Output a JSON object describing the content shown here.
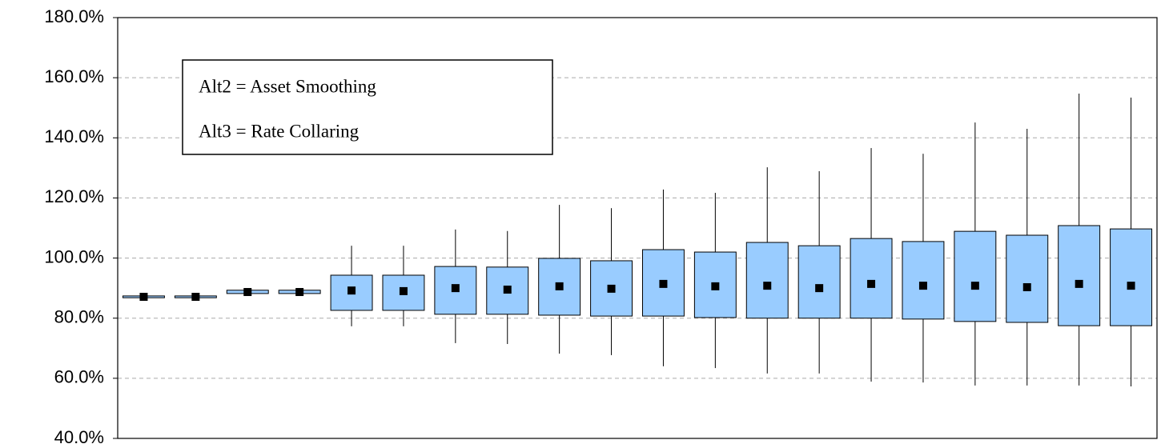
{
  "chart_data": {
    "type": "box",
    "annotations": [
      "Alt2 = Asset Smoothing",
      "Alt3 = Rate Collaring"
    ],
    "categories": [
      null,
      null,
      null,
      null,
      null,
      null,
      null,
      null,
      null,
      null,
      null,
      null,
      null,
      null,
      null,
      null,
      null,
      null,
      null,
      null
    ],
    "color": "#99ccff",
    "boxes": [
      {
        "whislo": 86.8,
        "q1": 86.8,
        "mean": 87.1,
        "q3": 87.4,
        "whishi": 87.4
      },
      {
        "whislo": 86.8,
        "q1": 86.8,
        "mean": 87.1,
        "q3": 87.4,
        "whishi": 87.4
      },
      {
        "whislo": 88.2,
        "q1": 88.2,
        "mean": 88.7,
        "q3": 89.3,
        "whishi": 89.3
      },
      {
        "whislo": 88.2,
        "q1": 88.2,
        "mean": 88.7,
        "q3": 89.3,
        "whishi": 89.3
      },
      {
        "whislo": 77.3,
        "q1": 82.6,
        "mean": 89.2,
        "q3": 94.3,
        "whishi": 104.1
      },
      {
        "whislo": 77.3,
        "q1": 82.6,
        "mean": 89.0,
        "q3": 94.3,
        "whishi": 104.1
      },
      {
        "whislo": 71.7,
        "q1": 81.3,
        "mean": 90.0,
        "q3": 97.2,
        "whishi": 109.5
      },
      {
        "whislo": 71.4,
        "q1": 81.3,
        "mean": 89.5,
        "q3": 97.0,
        "whishi": 109.0
      },
      {
        "whislo": 68.2,
        "q1": 81.0,
        "mean": 90.6,
        "q3": 99.9,
        "whishi": 117.7
      },
      {
        "whislo": 67.7,
        "q1": 80.7,
        "mean": 89.8,
        "q3": 99.1,
        "whishi": 116.6
      },
      {
        "whislo": 64.0,
        "q1": 80.7,
        "mean": 91.4,
        "q3": 102.8,
        "whishi": 122.8
      },
      {
        "whislo": 63.4,
        "q1": 80.2,
        "mean": 90.6,
        "q3": 102.0,
        "whishi": 121.7
      },
      {
        "whislo": 61.6,
        "q1": 80.0,
        "mean": 90.8,
        "q3": 105.2,
        "whishi": 130.2
      },
      {
        "whislo": 61.6,
        "q1": 80.0,
        "mean": 90.0,
        "q3": 104.1,
        "whishi": 128.9
      },
      {
        "whislo": 58.9,
        "q1": 80.0,
        "mean": 91.4,
        "q3": 106.5,
        "whishi": 136.6
      },
      {
        "whislo": 58.6,
        "q1": 79.7,
        "mean": 90.8,
        "q3": 105.5,
        "whishi": 134.7
      },
      {
        "whislo": 57.6,
        "q1": 78.9,
        "mean": 90.8,
        "q3": 108.9,
        "whishi": 145.1
      },
      {
        "whislo": 57.6,
        "q1": 78.6,
        "mean": 90.3,
        "q3": 107.6,
        "whishi": 143.0
      },
      {
        "whislo": 57.6,
        "q1": 77.5,
        "mean": 91.4,
        "q3": 110.8,
        "whishi": 154.7
      },
      {
        "whislo": 57.3,
        "q1": 77.5,
        "mean": 90.8,
        "q3": 109.7,
        "whishi": 153.4
      }
    ],
    "ylim": [
      40,
      180
    ],
    "yticks": [
      {
        "value": 40,
        "label": "40.0%"
      },
      {
        "value": 60,
        "label": "60.0%"
      },
      {
        "value": 80,
        "label": "80.0%"
      },
      {
        "value": 100,
        "label": "100.0%"
      },
      {
        "value": 120,
        "label": "120.0%"
      },
      {
        "value": 140,
        "label": "140.0%"
      },
      {
        "value": 160,
        "label": "160.0%"
      },
      {
        "value": 180,
        "label": "180.0%"
      }
    ],
    "grid": true
  }
}
